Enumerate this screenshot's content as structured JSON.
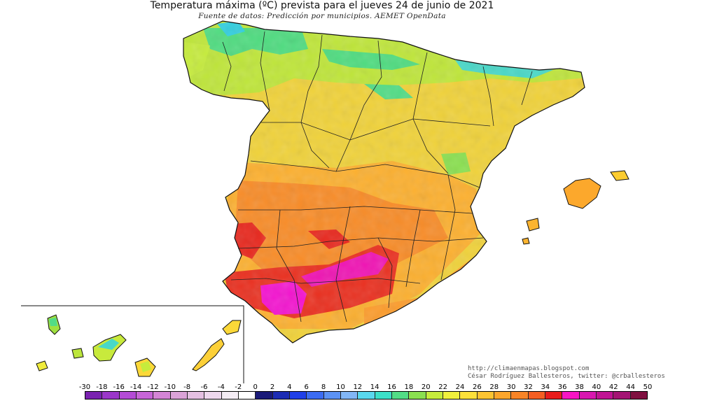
{
  "title": "Temperatura máxima (ºC) prevista para el jueves 24 de junio de 2021",
  "subtitle": "Fuente de datos: Predicción por municipios. AEMET OpenData",
  "credits": {
    "url": "http://climaenmapas.blogspot.com",
    "author": "César Rodríguez Ballesteros, twitter: @crballesteros"
  },
  "legend": {
    "labels": [
      "-30",
      "-18",
      "-16",
      "-14",
      "-12",
      "-10",
      "-8",
      "-6",
      "-4",
      "-2",
      "0",
      "2",
      "4",
      "6",
      "8",
      "10",
      "12",
      "14",
      "16",
      "18",
      "20",
      "22",
      "24",
      "26",
      "28",
      "30",
      "32",
      "34",
      "36",
      "38",
      "40",
      "42",
      "44",
      "50"
    ],
    "colors": [
      "#7a22b0",
      "#9b36c9",
      "#b44cd6",
      "#c766d8",
      "#d485d6",
      "#dba3d8",
      "#e4c0e2",
      "#eed8ee",
      "#f4ecf4",
      "#ffffff",
      "#1a1a78",
      "#1c2cb4",
      "#2040e8",
      "#3c6cf2",
      "#5c92f4",
      "#82b6f6",
      "#5ad8ee",
      "#3ce0c8",
      "#52dc86",
      "#8ae050",
      "#c6ec3c",
      "#f0f03c",
      "#fce03a",
      "#fcc432",
      "#fca62c",
      "#f88426",
      "#f45e22",
      "#e81c1c",
      "#f814c4",
      "#d818b0",
      "#c01494",
      "#a41474",
      "#801040"
    ]
  },
  "map_regions": {
    "peninsula": "Península Ibérica",
    "balearic": "Islas Baleares",
    "canary": "Islas Canarias"
  }
}
